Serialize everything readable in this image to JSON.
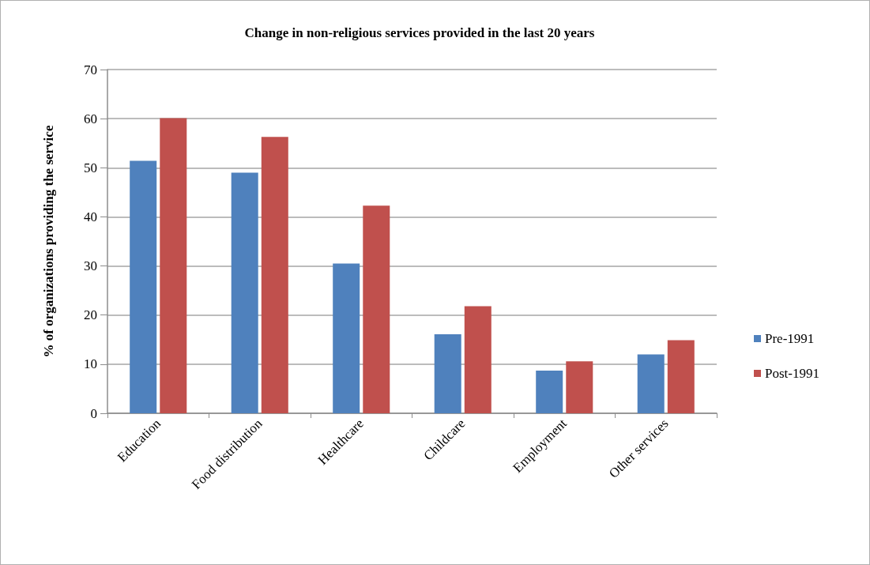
{
  "chart_data": {
    "type": "bar",
    "title": "Change in non-religious services provided in the last 20 years",
    "ylabel": "% of organizations providing the service",
    "categories": [
      "Education",
      "Food distribution",
      "Healthcare",
      "Childcare",
      "Employment",
      "Other services"
    ],
    "series": [
      {
        "name": "Pre-1991",
        "color": "#4f81bd",
        "values": [
          51.4,
          49.0,
          30.5,
          16.1,
          8.7,
          12.0
        ]
      },
      {
        "name": "Post-1991",
        "color": "#c0504d",
        "values": [
          60.1,
          56.3,
          42.3,
          21.8,
          10.6,
          14.9
        ]
      }
    ],
    "ylim": [
      0,
      70
    ],
    "yticks": [
      0,
      10,
      20,
      30,
      40,
      50,
      60,
      70
    ],
    "grid": "y",
    "legend": "right"
  }
}
